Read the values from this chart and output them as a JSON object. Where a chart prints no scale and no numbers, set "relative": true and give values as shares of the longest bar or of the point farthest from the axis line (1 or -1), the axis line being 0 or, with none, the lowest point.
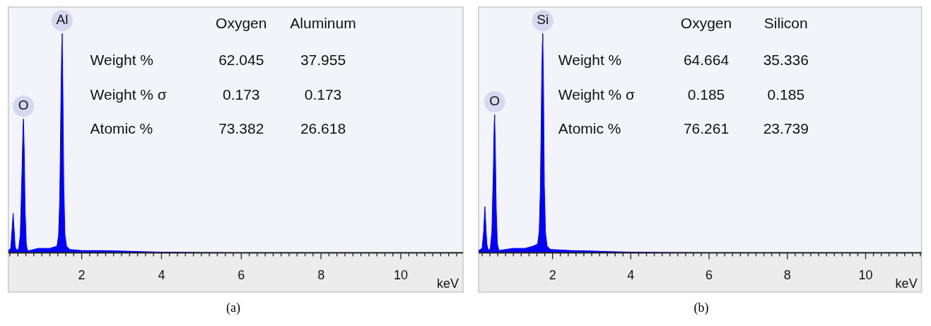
{
  "chart_data": [
    {
      "type": "area",
      "relative": true,
      "title": "(a)",
      "xlabel": "keV",
      "color": "#0000ff",
      "x": [
        0.16,
        0.22,
        0.26,
        0.28,
        0.3,
        0.33,
        0.37,
        0.42,
        0.46,
        0.5,
        0.53,
        0.54,
        0.56,
        0.58,
        0.61,
        0.64,
        0.7,
        0.9,
        1.2,
        1.38,
        1.42,
        1.45,
        1.48,
        1.5,
        1.51,
        1.53,
        1.55,
        1.58,
        1.62,
        1.7,
        2.0,
        2.5,
        3.0,
        3.5,
        4.0,
        5,
        6,
        8,
        11.56
      ],
      "values": [
        0.01,
        0.02,
        0.12,
        0.18,
        0.12,
        0.03,
        0.01,
        0.02,
        0.08,
        0.35,
        0.58,
        0.61,
        0.45,
        0.2,
        0.04,
        0.01,
        0.01,
        0.02,
        0.02,
        0.03,
        0.08,
        0.25,
        0.7,
        0.95,
        1,
        0.7,
        0.3,
        0.08,
        0.03,
        0.015,
        0.01,
        0.01,
        0.008,
        0.005,
        0.003,
        0.001,
        0,
        0,
        0
      ],
      "xlim": [
        0.16,
        11.56
      ],
      "xticks": [
        {
          "value": 0.2,
          "label": null
        },
        {
          "value": 0.4,
          "label": null
        },
        {
          "value": 0.6,
          "label": null
        },
        {
          "value": 0.8,
          "label": null
        },
        {
          "value": 1,
          "label": null
        },
        {
          "value": 1.2,
          "label": null
        },
        {
          "value": 1.4,
          "label": null
        },
        {
          "value": 1.6,
          "label": null
        },
        {
          "value": 1.8,
          "label": null
        },
        2,
        {
          "value": 2.2,
          "label": null
        },
        {
          "value": 2.4,
          "label": null
        },
        {
          "value": 2.6,
          "label": null
        },
        {
          "value": 2.8,
          "label": null
        },
        {
          "value": 3,
          "label": null
        },
        {
          "value": 3.2,
          "label": null
        },
        {
          "value": 3.4,
          "label": null
        },
        {
          "value": 3.6,
          "label": null
        },
        {
          "value": 3.8,
          "label": null
        },
        4,
        {
          "value": 4.2,
          "label": null
        },
        {
          "value": 4.4,
          "label": null
        },
        {
          "value": 4.6,
          "label": null
        },
        {
          "value": 4.8,
          "label": null
        },
        {
          "value": 5,
          "label": null
        },
        {
          "value": 5.2,
          "label": null
        },
        {
          "value": 5.4,
          "label": null
        },
        {
          "value": 5.6,
          "label": null
        },
        {
          "value": 5.8,
          "label": null
        },
        6,
        {
          "value": 6.2,
          "label": null
        },
        {
          "value": 6.4,
          "label": null
        },
        {
          "value": 6.6,
          "label": null
        },
        {
          "value": 6.8,
          "label": null
        },
        {
          "value": 7,
          "label": null
        },
        {
          "value": 7.2,
          "label": null
        },
        {
          "value": 7.4,
          "label": null
        },
        {
          "value": 7.6,
          "label": null
        },
        {
          "value": 7.8,
          "label": null
        },
        8,
        {
          "value": 8.2,
          "label": null
        },
        {
          "value": 8.4,
          "label": null
        },
        {
          "value": 8.6,
          "label": null
        },
        {
          "value": 8.8,
          "label": null
        },
        {
          "value": 9,
          "label": null
        },
        {
          "value": 9.2,
          "label": null
        },
        {
          "value": 9.4,
          "label": null
        },
        {
          "value": 9.6,
          "label": null
        },
        {
          "value": 9.8,
          "label": null
        },
        10,
        {
          "value": 10.2,
          "label": null
        },
        {
          "value": 10.4,
          "label": null
        },
        {
          "value": 10.6,
          "label": null
        },
        {
          "value": 10.8,
          "label": null
        },
        {
          "value": 11,
          "label": null
        },
        {
          "value": 11.2,
          "label": null
        },
        {
          "value": 11.4,
          "label": null
        }
      ],
      "annotations": [
        "Oxygen",
        "Aluminum",
        "Weight %",
        "62.045",
        "37.955",
        "Weight % σ",
        "0.173",
        "0.173",
        "Atomic %",
        "73.382",
        "26.618",
        {
          "text": "O",
          "x": 0.54,
          "y": 0.61
        },
        {
          "text": "Al",
          "x": 1.51,
          "y": 1
        }
      ]
    },
    {
      "type": "area",
      "relative": true,
      "title": "(b)",
      "xlabel": "keV",
      "color": "#0000ff",
      "x": [
        0.11,
        0.2,
        0.24,
        0.27,
        0.29,
        0.32,
        0.36,
        0.41,
        0.45,
        0.49,
        0.51,
        0.52,
        0.54,
        0.56,
        0.59,
        0.63,
        0.8,
        1.0,
        1.3,
        1.5,
        1.62,
        1.66,
        1.69,
        1.72,
        1.74,
        1.75,
        1.77,
        1.79,
        1.82,
        1.86,
        1.95,
        2.5,
        3,
        3.5,
        4,
        5,
        6,
        8,
        11.43
      ],
      "values": [
        0.01,
        0.02,
        0.1,
        0.21,
        0.14,
        0.04,
        0.01,
        0.02,
        0.1,
        0.4,
        0.6,
        0.63,
        0.45,
        0.2,
        0.04,
        0.01,
        0.015,
        0.02,
        0.02,
        0.03,
        0.04,
        0.1,
        0.3,
        0.75,
        0.96,
        1,
        0.72,
        0.3,
        0.09,
        0.03,
        0.015,
        0.01,
        0.008,
        0.005,
        0.003,
        0.001,
        0,
        0,
        0
      ],
      "xlim": [
        0.11,
        11.43
      ],
      "xticks": [
        {
          "value": 0.2,
          "label": null
        },
        {
          "value": 0.4,
          "label": null
        },
        {
          "value": 0.6,
          "label": null
        },
        {
          "value": 0.8,
          "label": null
        },
        {
          "value": 1,
          "label": null
        },
        {
          "value": 1.2,
          "label": null
        },
        {
          "value": 1.4,
          "label": null
        },
        {
          "value": 1.6,
          "label": null
        },
        {
          "value": 1.8,
          "label": null
        },
        2,
        {
          "value": 2.2,
          "label": null
        },
        {
          "value": 2.4,
          "label": null
        },
        {
          "value": 2.6,
          "label": null
        },
        {
          "value": 2.8,
          "label": null
        },
        {
          "value": 3,
          "label": null
        },
        {
          "value": 3.2,
          "label": null
        },
        {
          "value": 3.4,
          "label": null
        },
        {
          "value": 3.6,
          "label": null
        },
        {
          "value": 3.8,
          "label": null
        },
        4,
        {
          "value": 4.2,
          "label": null
        },
        {
          "value": 4.4,
          "label": null
        },
        {
          "value": 4.6,
          "label": null
        },
        {
          "value": 4.8,
          "label": null
        },
        {
          "value": 5,
          "label": null
        },
        {
          "value": 5.2,
          "label": null
        },
        {
          "value": 5.4,
          "label": null
        },
        {
          "value": 5.6,
          "label": null
        },
        {
          "value": 5.8,
          "label": null
        },
        6,
        {
          "value": 6.2,
          "label": null
        },
        {
          "value": 6.4,
          "label": null
        },
        {
          "value": 6.6,
          "label": null
        },
        {
          "value": 6.8,
          "label": null
        },
        {
          "value": 7,
          "label": null
        },
        {
          "value": 7.2,
          "label": null
        },
        {
          "value": 7.4,
          "label": null
        },
        {
          "value": 7.6,
          "label": null
        },
        {
          "value": 7.8,
          "label": null
        },
        8,
        {
          "value": 8.2,
          "label": null
        },
        {
          "value": 8.4,
          "label": null
        },
        {
          "value": 8.6,
          "label": null
        },
        {
          "value": 8.8,
          "label": null
        },
        {
          "value": 9,
          "label": null
        },
        {
          "value": 9.2,
          "label": null
        },
        {
          "value": 9.4,
          "label": null
        },
        {
          "value": 9.6,
          "label": null
        },
        {
          "value": 9.8,
          "label": null
        },
        10,
        {
          "value": 10.2,
          "label": null
        },
        {
          "value": 10.4,
          "label": null
        },
        {
          "value": 10.6,
          "label": null
        },
        {
          "value": 10.8,
          "label": null
        },
        {
          "value": 11,
          "label": null
        },
        {
          "value": 11.2,
          "label": null
        },
        {
          "value": 11.4,
          "label": null
        }
      ],
      "annotations": [
        "Oxygen",
        "Silicon",
        "Weight %",
        "64.664",
        "35.336",
        "Weight % σ",
        "0.185",
        "0.185",
        "Atomic %",
        "76.261",
        "23.739",
        {
          "text": "O",
          "x": 0.52,
          "y": 0.63
        },
        {
          "text": "Si",
          "x": 1.75,
          "y": 1
        }
      ]
    }
  ]
}
